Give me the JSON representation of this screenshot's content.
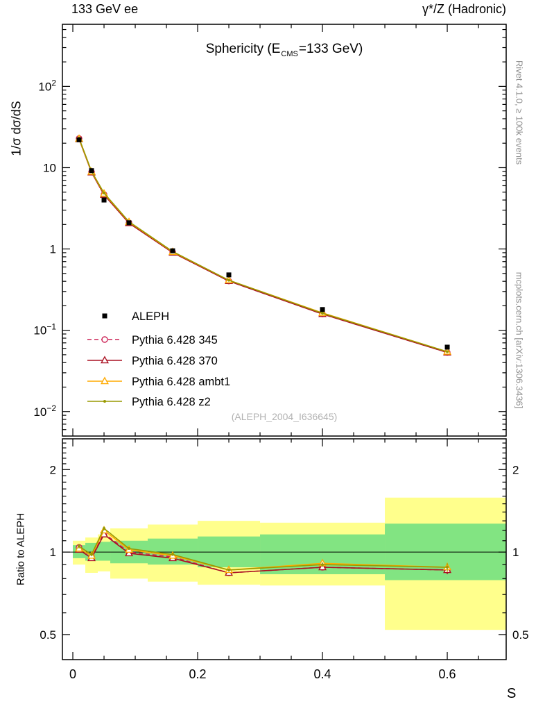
{
  "header": {
    "left": "133 GeV ee",
    "right": "γ*/Z (Hadronic)"
  },
  "side_notes": {
    "top": "Rivet 4.1.0, ≥ 100k events",
    "bottom": "mcplots.cern.ch [arXiv:1306.3436]"
  },
  "watermark": "(ALEPH_2004_I636645)",
  "chart_data": {
    "type": "line",
    "title_parts": {
      "pre": "Sphericity (E",
      "sub": "CMS",
      "post": "=133 GeV)"
    },
    "xlabel": "S",
    "ylabel_main": "1/σ dσ/dS",
    "ylabel_ratio": "Ratio to ALEPH",
    "x_range": [
      -0.0167,
      0.6944
    ],
    "y_range_main": [
      0.005,
      580
    ],
    "y_range_ratio": [
      0.405,
      2.59
    ],
    "x_ticks": {
      "major": [
        0,
        0.2,
        0.4,
        0.6
      ],
      "labels": [
        "0",
        "0.2",
        "0.4",
        "0.6"
      ],
      "minor_step": 0.05
    },
    "y_ticks_main_exponents": [
      -2,
      -1,
      0,
      1,
      2
    ],
    "y_ticks_ratio": [
      0.5,
      1,
      2
    ],
    "x": [
      0.01,
      0.03,
      0.05,
      0.09,
      0.16,
      0.25,
      0.4,
      0.6
    ],
    "data_series": {
      "name": "ALEPH",
      "color": "#000000",
      "marker": "square",
      "values": [
        22,
        9.2,
        4.0,
        2.1,
        0.95,
        0.48,
        0.18,
        0.062
      ],
      "errors": [
        0.7,
        0.3,
        0.15,
        0.07,
        0.03,
        0.015,
        0.008,
        0.004
      ]
    },
    "mc_series": [
      {
        "name": "Pythia 6.428 345",
        "color": "#cc2255",
        "dash": "6,4",
        "marker": "circle-open",
        "ratio": [
          1.04,
          0.96,
          1.17,
          1.0,
          0.96,
          0.84,
          0.88,
          0.86
        ],
        "ratio_err": [
          0.025,
          0.02,
          0.02,
          0.012,
          0.012,
          0.015,
          0.02,
          0.03
        ]
      },
      {
        "name": "Pythia 6.428 370",
        "color": "#aa1122",
        "dash": null,
        "marker": "triangle-open",
        "ratio": [
          1.02,
          0.95,
          1.16,
          0.99,
          0.95,
          0.84,
          0.88,
          0.86
        ],
        "ratio_err": [
          0.025,
          0.02,
          0.02,
          0.012,
          0.012,
          0.015,
          0.02,
          0.03
        ]
      },
      {
        "name": "Pythia 6.428 ambt1",
        "color": "#ffaa00",
        "dash": null,
        "marker": "triangle-open",
        "ratio": [
          1.03,
          0.97,
          1.2,
          1.02,
          0.97,
          0.86,
          0.91,
          0.88
        ],
        "ratio_err": [
          0.02,
          0.02,
          0.02,
          0.012,
          0.012,
          0.015,
          0.02,
          0.035
        ]
      },
      {
        "name": "Pythia 6.428 z2",
        "color": "#999900",
        "dash": null,
        "marker": "dot",
        "ratio": [
          1.05,
          0.98,
          1.22,
          1.03,
          0.98,
          0.86,
          0.9,
          0.88
        ],
        "ratio_err": [
          0.02,
          0.015,
          0.02,
          0.01,
          0.01,
          0.012,
          0.018,
          0.03
        ]
      }
    ],
    "bands": [
      {
        "x0": 0.0,
        "x1": 0.02,
        "yellow": [
          0.9,
          1.1
        ],
        "green": [
          0.95,
          1.06
        ]
      },
      {
        "x0": 0.02,
        "x1": 0.04,
        "yellow": [
          0.84,
          1.13
        ],
        "green": [
          0.93,
          1.08
        ]
      },
      {
        "x0": 0.04,
        "x1": 0.06,
        "yellow": [
          0.85,
          1.16
        ],
        "green": [
          0.93,
          1.09
        ]
      },
      {
        "x0": 0.06,
        "x1": 0.12,
        "yellow": [
          0.8,
          1.22
        ],
        "green": [
          0.91,
          1.1
        ]
      },
      {
        "x0": 0.12,
        "x1": 0.2,
        "yellow": [
          0.78,
          1.26
        ],
        "green": [
          0.9,
          1.12
        ]
      },
      {
        "x0": 0.2,
        "x1": 0.3,
        "yellow": [
          0.76,
          1.3
        ],
        "green": [
          0.88,
          1.14
        ]
      },
      {
        "x0": 0.3,
        "x1": 0.5,
        "yellow": [
          0.755,
          1.28
        ],
        "green": [
          0.83,
          1.16
        ]
      },
      {
        "x0": 0.5,
        "x1": 0.7,
        "yellow": [
          0.52,
          1.58
        ],
        "green": [
          0.79,
          1.27
        ]
      }
    ],
    "colors": {
      "band_outer": "#ffff8c",
      "band_inner": "#82e482"
    }
  }
}
